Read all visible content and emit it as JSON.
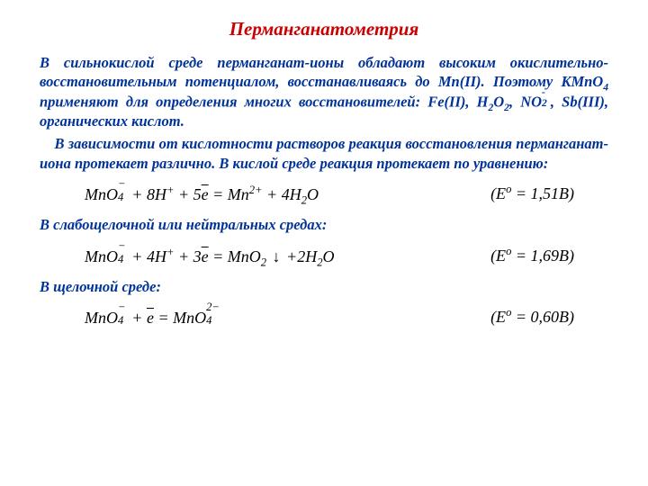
{
  "title": {
    "text": "Перманганатометрия",
    "color": "#cc0000"
  },
  "body_color": "#003399",
  "eq_color": "#000000",
  "para1_html": "В сильнокислой среде перманганат-ионы обладают высоким окислительно-восстановительным потенциалом, восстанавливаясь до Mn(II). Поэтому KMnO<sub>4</sub> применяют для определения многих восстановителей: Fe(II), H<sub>2</sub>O<sub>2</sub>, NO<span class=\"subsup\"><span class=\"s-sup\">-</span><span class=\"s-sub\">2</span></span>, Sb(III), органических кислот.",
  "para2_html": "В зависимости от кислотности растворов реакция восстановления перманганат-иона протекает различно. В кислой среде реакция протекает по уравнению:",
  "eq1": {
    "lhs_html": "MnO<span class=\"subsup\"><span class=\"s-sup\">−</span><span class=\"s-sub\">4</span></span> + 8H<sup>+</sup> + 5<span class=\"bar\">e</span> = Mn<sup>2+</sup> + 4H<sub>2</sub>O",
    "rhs_html": "(E<sup>o</sup> = 1,51B)"
  },
  "para3_html": "В слабощелочной или нейтральных средах:",
  "eq2": {
    "lhs_html": "MnO<span class=\"subsup\"><span class=\"s-sup\">−</span><span class=\"s-sub\">4</span></span> + 4H<sup>+</sup> + 3<span class=\"bar\">e</span> = MnO<sub>2</sub> <span class=\"arrowdn\">↓</span> +2H<sub>2</sub>O",
    "rhs_html": "(E<sup>o</sup> = 1,69B)"
  },
  "para4_html": "В щелочной среде:",
  "eq3": {
    "lhs_html": "MnO<span class=\"subsup\"><span class=\"s-sup\">−</span><span class=\"s-sub\">4</span></span> + <span class=\"bar\">e</span> = MnO<span class=\"subsup\"><span class=\"s-sup\">2−</span><span class=\"s-sub\">4</span></span>",
    "rhs_html": "(E<sup>o</sup> = 0,60B)"
  }
}
